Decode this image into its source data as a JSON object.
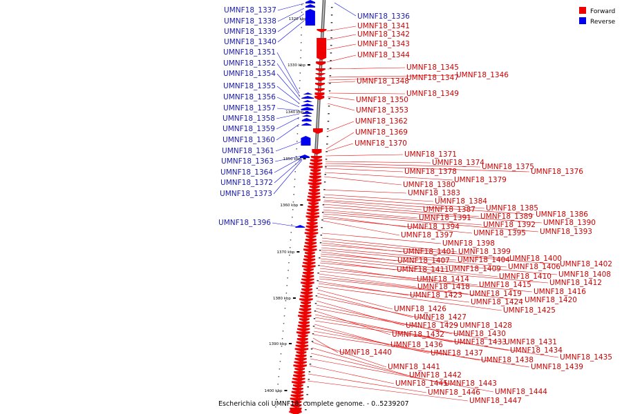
{
  "caption": "Escherichia coli UMNF18, complete genome. - 0..5239207",
  "legend": [
    {
      "label": "Forward",
      "color": "#ee0000"
    },
    {
      "label": "Reverse",
      "color": "#0000ee"
    }
  ],
  "colors": {
    "forward": "#ee0000",
    "reverse": "#0000ee",
    "forward_text": "#cc0000",
    "reverse_text": "#1a1aa8"
  },
  "ticks": [
    "1320 kbp",
    "1330 kbp",
    "1340 kbp",
    "1350 kbp",
    "1360 kbp",
    "1370 kbp",
    "1380 kbp",
    "1390 kbp",
    "1400 kbp"
  ],
  "reverse_genes": [
    "UMNF18_1337",
    "UMNF18_1338",
    "UMNF18_1339",
    "UMNF18_1340",
    "UMNF18_1351",
    "UMNF18_1352",
    "UMNF18_1354",
    "UMNF18_1355",
    "UMNF18_1356",
    "UMNF18_1357",
    "UMNF18_1358",
    "UMNF18_1359",
    "UMNF18_1360",
    "UMNF18_1361",
    "UMNF18_1363",
    "UMNF18_1364",
    "UMNF18_1372",
    "UMNF18_1373",
    "UMNF18_1396",
    "UMNF18_1336"
  ],
  "forward_genes": [
    "UMNF18_1341",
    "UMNF18_1342",
    "UMNF18_1343",
    "UMNF18_1344",
    "UMNF18_1345",
    "UMNF18_1346",
    "UMNF18_1347",
    "UMNF18_1348",
    "UMNF18_1349",
    "UMNF18_1350",
    "UMNF18_1353",
    "UMNF18_1362",
    "UMNF18_1369",
    "UMNF18_1370",
    "UMNF18_1371",
    "UMNF18_1374",
    "UMNF18_1375",
    "UMNF18_1376",
    "UMNF18_1378",
    "UMNF18_1379",
    "UMNF18_1380",
    "UMNF18_1383",
    "UMNF18_1384",
    "UMNF18_1385",
    "UMNF18_1386",
    "UMNF18_1387",
    "UMNF18_1389",
    "UMNF18_1390",
    "UMNF18_1391",
    "UMNF18_1392",
    "UMNF18_1393",
    "UMNF18_1394",
    "UMNF18_1395",
    "UMNF18_1397",
    "UMNF18_1398",
    "UMNF18_1399",
    "UMNF18_1400",
    "UMNF18_1401",
    "UMNF18_1402",
    "UMNF18_1404",
    "UMNF18_1406",
    "UMNF18_1407",
    "UMNF18_1408",
    "UMNF18_1409",
    "UMNF18_1410",
    "UMNF18_1411",
    "UMNF18_1412",
    "UMNF18_1414",
    "UMNF18_1415",
    "UMNF18_1416",
    "UMNF18_1418",
    "UMNF18_1419",
    "UMNF18_1420",
    "UMNF18_1423",
    "UMNF18_1424",
    "UMNF18_1425",
    "UMNF18_1426",
    "UMNF18_1427",
    "UMNF18_1428",
    "UMNF18_1429",
    "UMNF18_1430",
    "UMNF18_1431",
    "UMNF18_1432",
    "UMNF18_1433",
    "UMNF18_1434",
    "UMNF18_1435",
    "UMNF18_1436",
    "UMNF18_1437",
    "UMNF18_1438",
    "UMNF18_1439",
    "UMNF18_1440",
    "UMNF18_1441",
    "UMNF18_1442",
    "UMNF18_1443",
    "UMNF18_1444",
    "UMNF18_1445",
    "UMNF18_1446",
    "UMNF18_1447"
  ]
}
